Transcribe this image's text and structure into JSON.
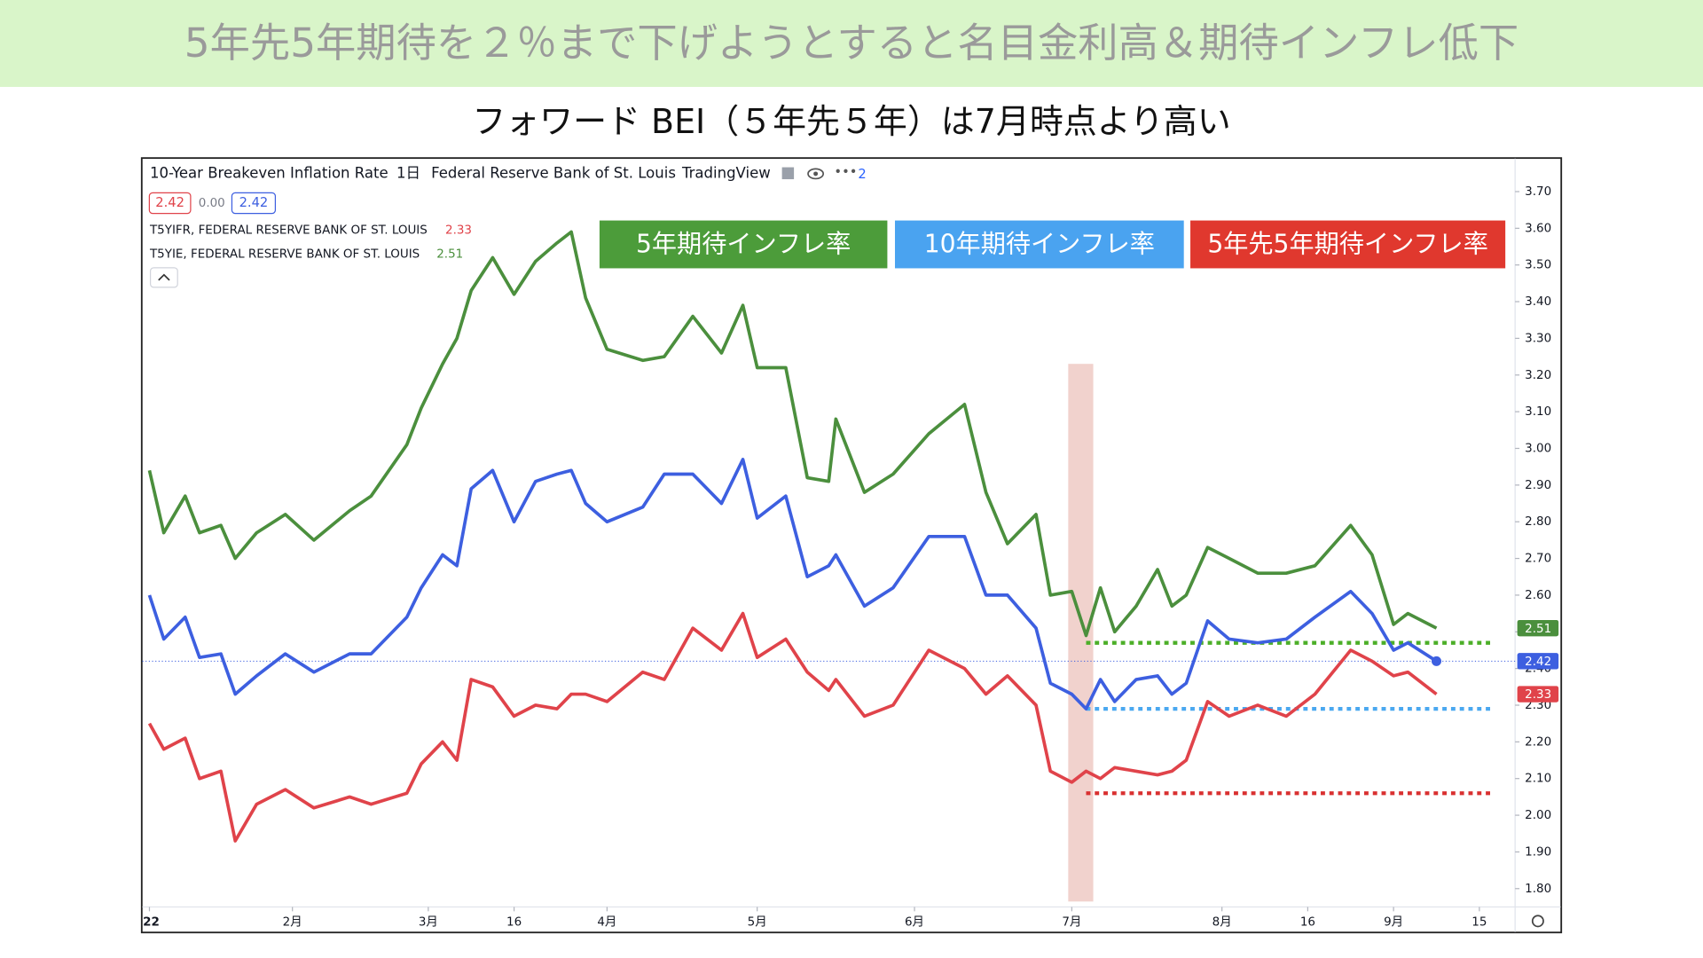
{
  "header": {
    "title": "5年先5年期待を２％まで下げようとすると名目金利高＆期待インフレ低下",
    "subtitle": "フォワード BEI（５年先５年）は7月時点より高い"
  },
  "tv_header": {
    "title": "10-Year Breakeven Inflation Rate",
    "interval": "1日",
    "source": "Federal Reserve Bank of St. Louis",
    "brand": "TradingView",
    "fragment": "2",
    "badges": [
      "2.42",
      "0.00",
      "2.42"
    ],
    "legend": [
      {
        "label": "T5YIFR, FEDERAL RESERVE BANK OF ST. LOUIS",
        "value": "2.33"
      },
      {
        "label": "T5YIE, FEDERAL RESERVE BANK OF ST. LOUIS",
        "value": "2.51"
      }
    ]
  },
  "chart_data": {
    "type": "line",
    "x": [
      0,
      2,
      5,
      7,
      10,
      12,
      15,
      19,
      23,
      28,
      31,
      36,
      38,
      41,
      43,
      45,
      48,
      51,
      54,
      57,
      59,
      61,
      64,
      69,
      72,
      76,
      80,
      83,
      85,
      89,
      92,
      95,
      96,
      100,
      104,
      109,
      114,
      117,
      120,
      124,
      126,
      129,
      131,
      133,
      135,
      138,
      141,
      143,
      145,
      148,
      151,
      155,
      159,
      163,
      168,
      171,
      174,
      176,
      180
    ],
    "series": [
      {
        "name": "5年期待インフレ率",
        "color": "#4b8f3d",
        "label_color": "#4c9c3a",
        "last_label": "2.51",
        "values": [
          2.94,
          2.77,
          2.87,
          2.77,
          2.79,
          2.7,
          2.77,
          2.82,
          2.75,
          2.83,
          2.87,
          3.01,
          3.11,
          3.23,
          3.3,
          3.43,
          3.52,
          3.42,
          3.51,
          3.56,
          3.59,
          3.41,
          3.27,
          3.24,
          3.25,
          3.36,
          3.26,
          3.39,
          3.22,
          3.22,
          2.92,
          2.91,
          3.08,
          2.88,
          2.93,
          3.04,
          3.12,
          2.88,
          2.74,
          2.82,
          2.6,
          2.61,
          2.49,
          2.62,
          2.5,
          2.57,
          2.67,
          2.57,
          2.6,
          2.73,
          2.7,
          2.66,
          2.66,
          2.68,
          2.79,
          2.71,
          2.52,
          2.55,
          2.51
        ]
      },
      {
        "name": "10年期待インフレ率",
        "color": "#3d5fe0",
        "label_color": "#4aa3f0",
        "last_label": "2.42",
        "values": [
          2.6,
          2.48,
          2.54,
          2.43,
          2.44,
          2.33,
          2.38,
          2.44,
          2.39,
          2.44,
          2.44,
          2.54,
          2.62,
          2.71,
          2.68,
          2.89,
          2.94,
          2.8,
          2.91,
          2.93,
          2.94,
          2.85,
          2.8,
          2.84,
          2.93,
          2.93,
          2.85,
          2.97,
          2.81,
          2.87,
          2.65,
          2.68,
          2.71,
          2.57,
          2.62,
          2.76,
          2.76,
          2.6,
          2.6,
          2.51,
          2.36,
          2.33,
          2.29,
          2.37,
          2.31,
          2.37,
          2.38,
          2.33,
          2.36,
          2.53,
          2.48,
          2.47,
          2.48,
          2.54,
          2.61,
          2.55,
          2.45,
          2.47,
          2.42
        ]
      },
      {
        "name": "5年先5年期待インフレ率",
        "color": "#e0434a",
        "label_color": "#e0382e",
        "last_label": "2.33",
        "values": [
          2.25,
          2.18,
          2.21,
          2.1,
          2.12,
          1.93,
          2.03,
          2.07,
          2.02,
          2.05,
          2.03,
          2.06,
          2.14,
          2.2,
          2.15,
          2.37,
          2.35,
          2.27,
          2.3,
          2.29,
          2.33,
          2.33,
          2.31,
          2.39,
          2.37,
          2.51,
          2.45,
          2.55,
          2.43,
          2.48,
          2.39,
          2.34,
          2.37,
          2.27,
          2.3,
          2.45,
          2.4,
          2.33,
          2.38,
          2.3,
          2.12,
          2.09,
          2.12,
          2.1,
          2.13,
          2.12,
          2.11,
          2.12,
          2.15,
          2.31,
          2.27,
          2.3,
          2.27,
          2.33,
          2.45,
          2.42,
          2.38,
          2.39,
          2.33
        ]
      }
    ],
    "reference_lines": [
      {
        "value": 2.47,
        "color": "#4caf28",
        "from_x": 131,
        "to_x": 188
      },
      {
        "value": 2.29,
        "color": "#4aa8f0",
        "from_x": 131,
        "to_x": 188
      },
      {
        "value": 2.06,
        "color": "#d93030",
        "from_x": 131,
        "to_x": 188
      }
    ],
    "highlight_x": [
      128.5,
      132
    ],
    "xlim": [
      -1,
      191
    ],
    "xticks": [
      {
        "value": 0,
        "label": "22"
      },
      {
        "value": 20,
        "label": "2月"
      },
      {
        "value": 39,
        "label": "3月"
      },
      {
        "value": 51,
        "label": "16"
      },
      {
        "value": 64,
        "label": "4月"
      },
      {
        "value": 85,
        "label": "5月"
      },
      {
        "value": 107,
        "label": "6月"
      },
      {
        "value": 129,
        "label": "7月"
      },
      {
        "value": 150,
        "label": "8月"
      },
      {
        "value": 162,
        "label": "16"
      },
      {
        "value": 174,
        "label": "9月"
      },
      {
        "value": 186,
        "label": "15"
      }
    ],
    "ylim": [
      1.75,
      3.79
    ],
    "yticks": [
      {
        "value": 1.8,
        "label": "1.80"
      },
      {
        "value": 1.9,
        "label": "1.90"
      },
      {
        "value": 2.0,
        "label": "2.00"
      },
      {
        "value": 2.1,
        "label": "2.10"
      },
      {
        "value": 2.2,
        "label": "2.20"
      },
      {
        "value": 2.3,
        "label": "2.30"
      },
      {
        "value": 2.4,
        "label": "2.40"
      },
      {
        "value": 2.5,
        "label": "2.50"
      },
      {
        "value": 2.6,
        "label": "2.60"
      },
      {
        "value": 2.7,
        "label": "2.70"
      },
      {
        "value": 2.8,
        "label": "2.80"
      },
      {
        "value": 2.9,
        "label": "2.90"
      },
      {
        "value": 3.0,
        "label": "3.00"
      },
      {
        "value": 3.1,
        "label": "3.10"
      },
      {
        "value": 3.2,
        "label": "3.20"
      },
      {
        "value": 3.3,
        "label": "3.30"
      },
      {
        "value": 3.4,
        "label": "3.40"
      },
      {
        "value": 3.5,
        "label": "3.50"
      },
      {
        "value": 3.6,
        "label": "3.60"
      },
      {
        "value": 3.7,
        "label": "3.70"
      }
    ]
  }
}
